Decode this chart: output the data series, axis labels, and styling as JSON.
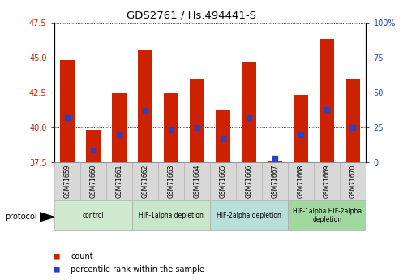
{
  "title": "GDS2761 / Hs.494441-S",
  "samples": [
    "GSM71659",
    "GSM71660",
    "GSM71661",
    "GSM71662",
    "GSM71663",
    "GSM71664",
    "GSM71665",
    "GSM71666",
    "GSM71667",
    "GSM71668",
    "GSM71669",
    "GSM71670"
  ],
  "bar_values": [
    44.8,
    39.8,
    42.5,
    45.5,
    42.5,
    43.5,
    41.3,
    44.7,
    37.6,
    42.3,
    46.3,
    43.5
  ],
  "dot_values": [
    40.7,
    38.4,
    39.5,
    41.2,
    39.8,
    40.0,
    39.2,
    40.7,
    37.8,
    39.5,
    41.3,
    40.0
  ],
  "bar_color": "#cc2200",
  "dot_color": "#2244cc",
  "ylim": [
    37.5,
    47.5
  ],
  "yticks": [
    37.5,
    40.0,
    42.5,
    45.0,
    47.5
  ],
  "ylabel_color_left": "#cc2200",
  "ylabel_color_right": "#2244cc",
  "groups": [
    {
      "label": "control",
      "start": 0,
      "end": 3,
      "color": "#d0ead0"
    },
    {
      "label": "HIF-1alpha depletion",
      "start": 3,
      "end": 6,
      "color": "#c8e6c9"
    },
    {
      "label": "HIF-2alpha depletion",
      "start": 6,
      "end": 9,
      "color": "#b8dfd8"
    },
    {
      "label": "HIF-1alpha HIF-2alpha\ndepletion",
      "start": 9,
      "end": 12,
      "color": "#a0d8a0"
    }
  ],
  "background_color": "#ffffff",
  "legend_count_label": "count",
  "legend_percentile_label": "percentile rank within the sample",
  "protocol_label": "protocol"
}
